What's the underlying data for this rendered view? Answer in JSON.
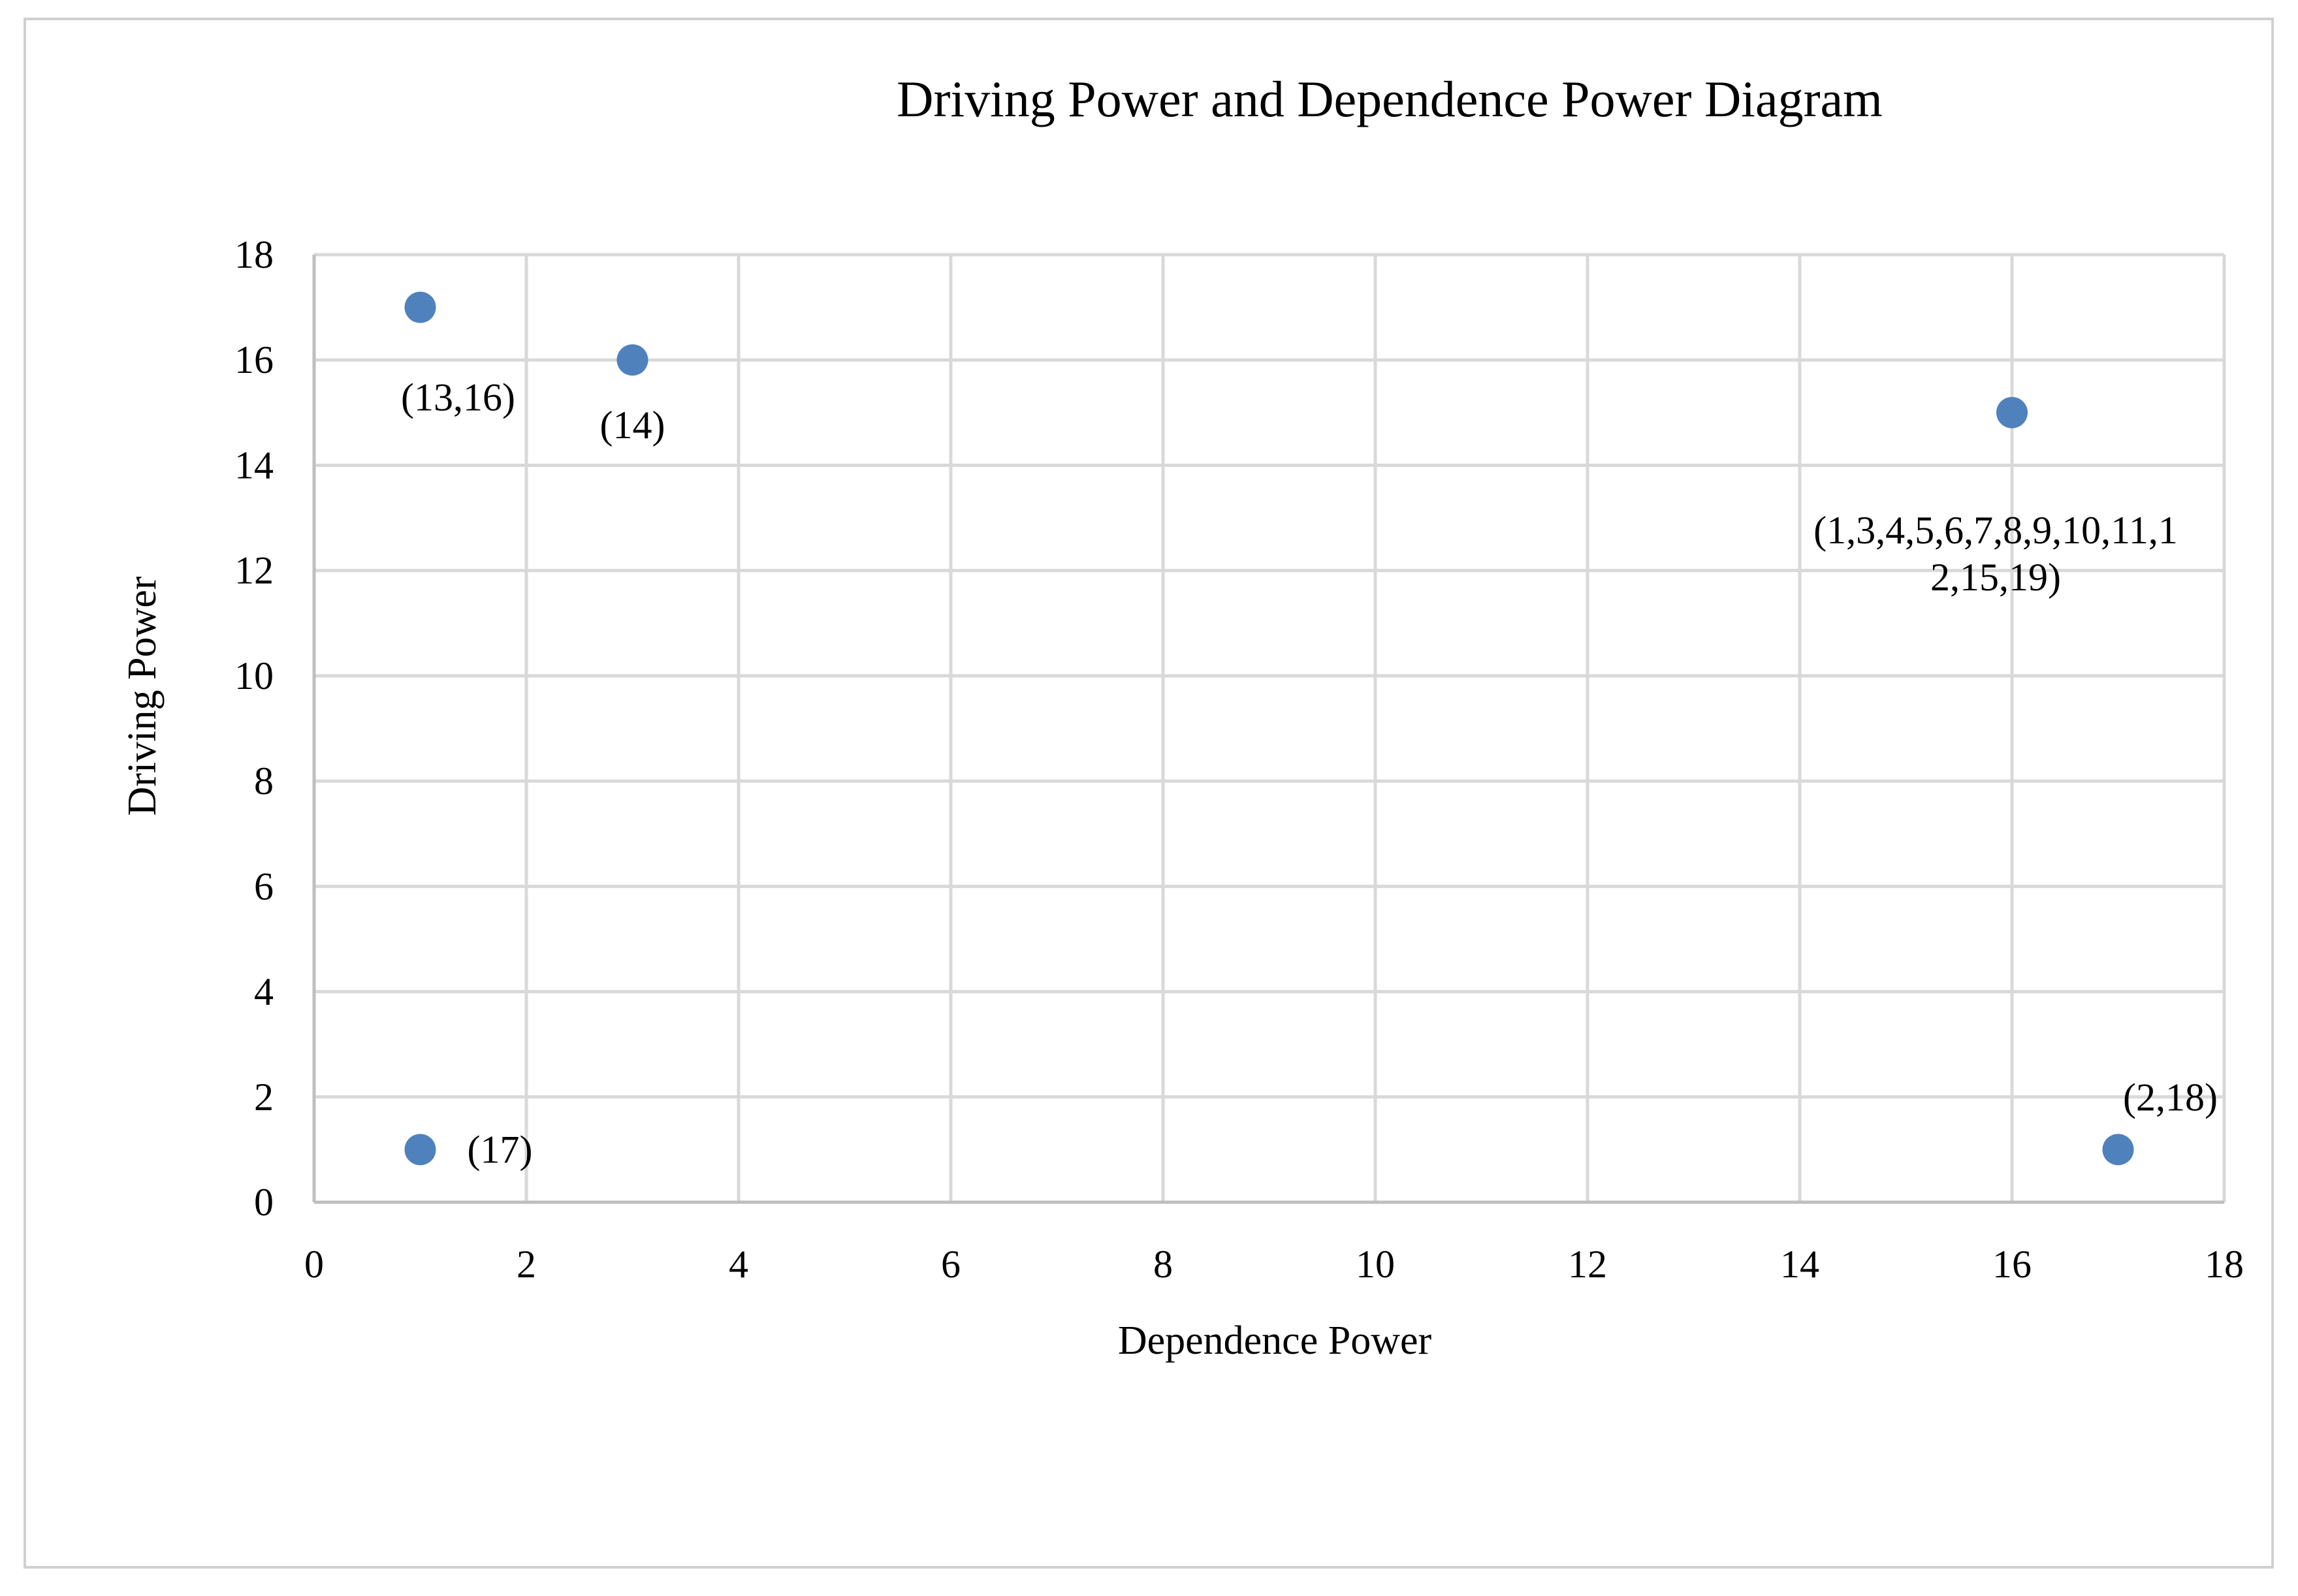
{
  "chart_data": {
    "type": "scatter",
    "title": "Driving Power and Dependence Power Diagram",
    "xlabel": "Dependence Power",
    "ylabel": "Driving Power",
    "xlim": [
      0,
      18
    ],
    "ylim": [
      0,
      18
    ],
    "x_ticks": [
      0,
      2,
      4,
      6,
      8,
      10,
      12,
      14,
      16,
      18
    ],
    "y_ticks": [
      0,
      2,
      4,
      6,
      8,
      10,
      12,
      14,
      16,
      18
    ],
    "grid": true,
    "marker_color": "#4f81bd",
    "points": [
      {
        "x": 1,
        "y": 17,
        "label_lines": [
          "(13,16)"
        ],
        "label_position": "below"
      },
      {
        "x": 3,
        "y": 16,
        "label_lines": [
          "(14)"
        ],
        "label_position": "below"
      },
      {
        "x": 16,
        "y": 15,
        "label_lines": [
          "(1,3,4,5,6,7,8,9,10,11,1",
          "2,15,19)"
        ],
        "label_position": "below"
      },
      {
        "x": 1,
        "y": 1,
        "label_lines": [
          "(17)"
        ],
        "label_position": "right"
      },
      {
        "x": 17,
        "y": 1,
        "label_lines": [
          "(2,18)"
        ],
        "label_position": "above"
      }
    ]
  }
}
